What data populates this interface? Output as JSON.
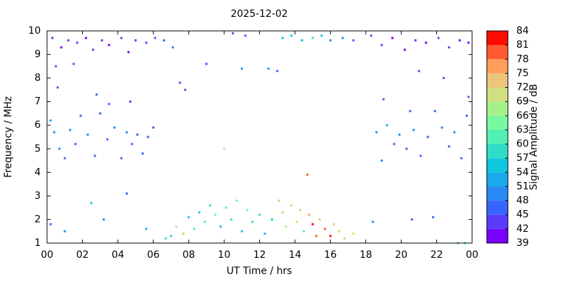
{
  "chart_data": {
    "type": "heatmap",
    "title": "2025-12-02",
    "xlabel": "UT Time / hrs",
    "ylabel": "Frequency / MHz",
    "clabel": "Signal Amplitude / dB",
    "xlim": [
      0,
      24
    ],
    "xticks": [
      {
        "value": 0,
        "label": "00"
      },
      {
        "value": 2,
        "label": "02"
      },
      {
        "value": 4,
        "label": "04"
      },
      {
        "value": 6,
        "label": "06"
      },
      {
        "value": 8,
        "label": "08"
      },
      10,
      12,
      14,
      16,
      18,
      20,
      22,
      {
        "value": 24,
        "label": "00"
      }
    ],
    "ylim": [
      1,
      10
    ],
    "yticks": [
      1,
      2,
      3,
      4,
      5,
      6,
      7,
      8,
      9,
      10
    ],
    "clim": [
      39,
      84
    ],
    "cticks": [
      39,
      42,
      45,
      48,
      51,
      54,
      57,
      60,
      63,
      66,
      69,
      72,
      75,
      78,
      81,
      84
    ],
    "colors": [
      "#7a00ff",
      "#5a3cff",
      "#3a64ff",
      "#2a8af5",
      "#18aaea",
      "#10c6dc",
      "#30dcc8",
      "#52f0b4",
      "#78f8a0",
      "#a6f08a",
      "#cfe080",
      "#ecc47a",
      "#ff9e5a",
      "#ff5a30",
      "#ff0a00"
    ],
    "x": [
      0.3,
      0.8,
      1.2,
      1.7,
      2.2,
      2.6,
      3.1,
      3.5,
      4.2,
      4.6,
      5.0,
      5.6,
      6.1,
      6.6,
      7.1,
      10.5,
      11.2,
      13.3,
      13.8,
      14.4,
      15.0,
      15.5,
      16.0,
      16.7,
      17.3,
      18.3,
      18.9,
      19.5,
      20.2,
      20.8,
      21.4,
      22.1,
      22.7,
      23.3,
      23.8,
      0.2,
      0.4,
      0.6,
      0.7,
      1.0,
      1.3,
      1.6,
      1.9,
      2.3,
      2.7,
      3.0,
      3.4,
      3.8,
      4.2,
      4.5,
      4.8,
      5.1,
      5.4,
      5.7,
      6.0,
      0.5,
      1.5,
      2.8,
      3.5,
      4.7,
      7.5,
      7.8,
      0.2,
      1.0,
      2.5,
      3.2,
      4.5,
      5.6,
      6.7,
      18.6,
      18.9,
      19.2,
      19.6,
      19.9,
      20.3,
      20.7,
      21.1,
      21.5,
      21.9,
      22.3,
      22.7,
      23.0,
      23.4,
      23.7,
      19.0,
      20.5,
      23.8,
      21.0,
      22.4,
      20.6,
      21.8,
      23.2,
      23.6,
      18.4,
      7.0,
      7.3,
      7.7,
      8.0,
      8.3,
      8.6,
      8.9,
      9.2,
      9.5,
      9.8,
      10.1,
      10.4,
      10.7,
      11.0,
      11.3,
      11.6,
      12.0,
      12.3,
      12.7,
      13.1,
      13.3,
      13.5,
      13.8,
      14.1,
      14.3,
      14.5,
      14.8,
      15.0,
      15.2,
      15.4,
      15.7,
      16.0,
      16.2,
      16.5,
      16.8,
      17.3,
      12.5,
      11.0,
      9.0,
      10.0,
      14.7,
      13.0
    ],
    "y": [
      9.7,
      9.3,
      9.6,
      9.5,
      9.7,
      9.2,
      9.6,
      9.4,
      9.7,
      9.1,
      9.6,
      9.5,
      9.7,
      9.6,
      9.3,
      9.9,
      9.8,
      9.7,
      9.8,
      9.6,
      9.7,
      9.8,
      9.6,
      9.7,
      9.6,
      9.8,
      9.4,
      9.7,
      9.2,
      9.6,
      9.5,
      9.7,
      9.3,
      9.6,
      9.5,
      6.2,
      5.7,
      7.6,
      5.0,
      4.6,
      5.8,
      5.2,
      6.4,
      5.6,
      4.7,
      6.5,
      5.4,
      5.9,
      4.6,
      5.7,
      5.2,
      5.6,
      4.8,
      5.5,
      5.9,
      8.5,
      8.6,
      7.3,
      6.9,
      7.0,
      7.8,
      7.5,
      1.8,
      1.5,
      2.7,
      2.0,
      3.1,
      1.6,
      1.2,
      5.7,
      4.5,
      6.0,
      5.2,
      5.6,
      5.0,
      5.8,
      4.7,
      5.5,
      6.6,
      5.9,
      5.1,
      5.7,
      4.6,
      6.4,
      7.1,
      6.6,
      7.2,
      8.3,
      8.0,
      2.0,
      2.1,
      1.0,
      1.0,
      1.9,
      1.3,
      1.7,
      1.4,
      2.1,
      1.6,
      2.3,
      1.9,
      2.6,
      2.2,
      1.7,
      2.5,
      2.0,
      2.8,
      1.5,
      2.4,
      1.9,
      2.2,
      1.4,
      2.0,
      2.8,
      2.3,
      1.7,
      2.6,
      1.9,
      2.4,
      1.5,
      2.2,
      1.8,
      1.3,
      2.0,
      1.6,
      1.3,
      1.8,
      1.5,
      1.2,
      1.4,
      8.4,
      8.4,
      8.6,
      5.0,
      3.9,
      8.3
    ],
    "values": [
      42,
      41,
      43,
      42,
      41,
      44,
      42,
      40,
      43,
      41,
      42,
      44,
      45,
      47,
      48,
      44,
      46,
      55,
      56,
      54,
      57,
      55,
      50,
      48,
      47,
      43,
      42,
      41,
      40,
      42,
      41,
      43,
      42,
      41,
      40,
      52,
      50,
      47,
      48,
      47,
      49,
      46,
      47,
      48,
      46,
      47,
      46,
      48,
      46,
      49,
      47,
      46,
      45,
      46,
      44,
      45,
      46,
      45,
      46,
      44,
      45,
      46,
      47,
      49,
      56,
      48,
      46,
      52,
      58,
      50,
      48,
      52,
      46,
      49,
      47,
      48,
      46,
      47,
      46,
      48,
      46,
      50,
      47,
      45,
      47,
      46,
      45,
      43,
      44,
      45,
      46,
      59,
      58,
      50,
      58,
      66,
      73,
      54,
      62,
      55,
      60,
      58,
      64,
      56,
      62,
      58,
      64,
      56,
      65,
      59,
      57,
      55,
      54,
      74,
      72,
      66,
      73,
      70,
      68,
      62,
      76,
      82,
      78,
      72,
      80,
      83,
      74,
      69,
      66,
      70,
      50,
      48,
      44,
      70,
      80,
      46
    ]
  }
}
